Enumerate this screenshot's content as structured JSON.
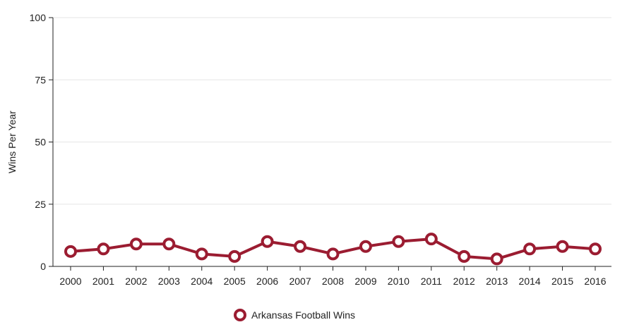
{
  "chart_data": {
    "type": "line",
    "x": [
      "2000",
      "2001",
      "2002",
      "2003",
      "2004",
      "2005",
      "2006",
      "2007",
      "2008",
      "2009",
      "2010",
      "2011",
      "2012",
      "2013",
      "2014",
      "2015",
      "2016"
    ],
    "series": [
      {
        "name": "Arkansas Football Wins",
        "values": [
          6,
          7,
          9,
          9,
          5,
          4,
          10,
          8,
          5,
          8,
          10,
          11,
          4,
          3,
          7,
          8,
          7
        ]
      }
    ],
    "ylabel": "Wins Per Year",
    "xlabel": "",
    "ylim": [
      0,
      100
    ],
    "yticks": [
      "0",
      "25",
      "50",
      "75",
      "100"
    ],
    "grid": true,
    "legend_position": "bottom"
  },
  "colors": {
    "series": "#9b1c31",
    "marker_fill": "#ffffff",
    "grid": "#e6e6e6",
    "axis": "#222222"
  }
}
